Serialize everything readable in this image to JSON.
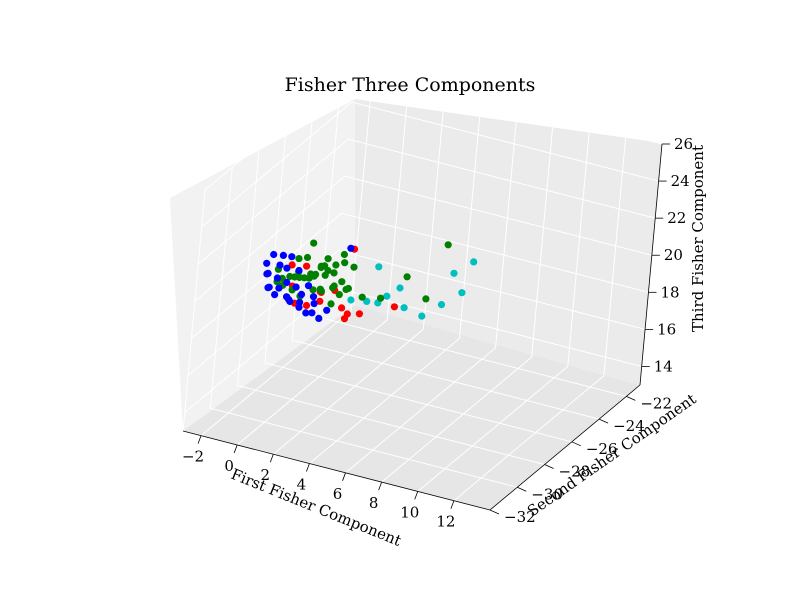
{
  "chart_data": {
    "type": "scatter",
    "title": "Fisher Three Components",
    "xlabel": "First Fisher Component",
    "ylabel": "Second Fisher Component",
    "zlabel": "Third Fisher Component",
    "x_ticks": [
      "−2",
      "0",
      "2",
      "4",
      "6",
      "8",
      "10",
      "12"
    ],
    "y_ticks": [
      "−22",
      "−24",
      "−26",
      "−28",
      "−30",
      "−32"
    ],
    "z_ticks": [
      "14",
      "16",
      "18",
      "20",
      "22",
      "24",
      "26"
    ],
    "xlim": [
      -3,
      14
    ],
    "ylim": [
      -32,
      -21
    ],
    "zlim": [
      13,
      26
    ],
    "colors": {
      "blue": "#0000ff",
      "green": "#008000",
      "red": "#ff0000",
      "cyan": "#00bfbf"
    },
    "series": [
      {
        "color": "cyan",
        "points": [
          [
            10.2,
            -31.0,
            24.2
          ],
          [
            10.8,
            -30.4,
            24.6
          ],
          [
            11.0,
            -31.4,
            23.6
          ],
          [
            9.0,
            -30.0,
            21.6
          ],
          [
            8.4,
            -30.6,
            21.2
          ],
          [
            7.4,
            -30.6,
            21.4
          ],
          [
            6.4,
            -29.6,
            21.6
          ],
          [
            6.0,
            -30.0,
            21.3
          ],
          [
            4.8,
            -29.8,
            20.6
          ],
          [
            3.8,
            -29.6,
            20.3
          ],
          [
            5.0,
            -29.2,
            20.2
          ],
          [
            4.6,
            -28.8,
            21.8
          ]
        ]
      },
      {
        "color": "red",
        "points": [
          [
            3.2,
            -28.8,
            22.4
          ],
          [
            6.6,
            -30.2,
            21.0
          ],
          [
            4.6,
            -30.0,
            20.0
          ],
          [
            3.2,
            -29.4,
            19.6
          ],
          [
            3.4,
            -29.2,
            19.2
          ],
          [
            3.0,
            -28.8,
            18.6
          ],
          [
            2.2,
            -28.6,
            19.8
          ],
          [
            0.6,
            -27.4,
            18.6
          ],
          [
            0.9,
            -27.8,
            18.4
          ],
          [
            -0.4,
            -27.2,
            19.6
          ],
          [
            -1.2,
            -27.0,
            18.2
          ],
          [
            -0.6,
            -27.6,
            17.8
          ],
          [
            0.2,
            -27.8,
            18.0
          ],
          [
            -1.6,
            -26.6,
            19.0
          ],
          [
            1.2,
            -28.2,
            19.2
          ]
        ]
      },
      {
        "color": "green",
        "points": [
          [
            9.2,
            -30.2,
            25.0
          ],
          [
            7.0,
            -30.0,
            22.6
          ],
          [
            8.4,
            -30.4,
            22.0
          ],
          [
            5.4,
            -29.6,
            20.8
          ],
          [
            4.4,
            -29.6,
            20.6
          ],
          [
            3.4,
            -29.0,
            21.6
          ],
          [
            2.6,
            -28.6,
            21.4
          ],
          [
            1.8,
            -28.2,
            20.4
          ],
          [
            2.4,
            -28.4,
            20.2
          ],
          [
            2.8,
            -28.6,
            20.0
          ],
          [
            1.6,
            -28.4,
            20.6
          ],
          [
            1.2,
            -28.0,
            20.0
          ],
          [
            0.8,
            -27.8,
            20.2
          ],
          [
            0.4,
            -27.6,
            19.6
          ],
          [
            0.0,
            -27.4,
            19.4
          ],
          [
            -0.2,
            -27.2,
            19.0
          ],
          [
            -0.6,
            -27.0,
            18.8
          ],
          [
            -1.0,
            -26.8,
            18.6
          ],
          [
            -1.4,
            -26.6,
            18.4
          ],
          [
            -1.8,
            -26.4,
            18.2
          ],
          [
            -0.8,
            -27.2,
            19.2
          ],
          [
            0.6,
            -28.0,
            19.8
          ],
          [
            1.4,
            -28.4,
            20.8
          ],
          [
            2.0,
            -28.4,
            21.0
          ],
          [
            -0.4,
            -26.8,
            20.6
          ],
          [
            -2.2,
            -26.4,
            18.0
          ],
          [
            -2.6,
            -26.2,
            17.6
          ],
          [
            -2.0,
            -26.6,
            17.8
          ],
          [
            -1.2,
            -27.0,
            18.0
          ],
          [
            0.2,
            -27.4,
            18.6
          ],
          [
            1.0,
            -28.0,
            19.2
          ],
          [
            1.8,
            -28.2,
            19.6
          ],
          [
            2.6,
            -28.8,
            19.8
          ],
          [
            3.2,
            -29.0,
            20.4
          ],
          [
            -0.2,
            -27.8,
            18.4
          ],
          [
            -1.6,
            -26.8,
            17.4
          ],
          [
            0.8,
            -27.6,
            18.8
          ],
          [
            1.6,
            -27.8,
            19.4
          ],
          [
            2.2,
            -28.8,
            19.2
          ],
          [
            -0.8,
            -26.6,
            19.6
          ],
          [
            -1.8,
            -25.8,
            18.8
          ],
          [
            -3.0,
            -25.6,
            17.8
          ],
          [
            0.4,
            -27.2,
            19.8
          ],
          [
            1.0,
            -27.6,
            20.6
          ],
          [
            2.0,
            -27.8,
            21.2
          ]
        ]
      },
      {
        "color": "blue",
        "points": [
          [
            3.0,
            -28.8,
            22.4
          ],
          [
            2.0,
            -28.8,
            18.8
          ],
          [
            0.8,
            -28.2,
            18.0
          ],
          [
            -0.2,
            -27.8,
            17.8
          ],
          [
            -1.2,
            -27.2,
            17.6
          ],
          [
            -2.2,
            -26.6,
            17.6
          ],
          [
            -3.0,
            -26.2,
            17.2
          ],
          [
            -3.6,
            -25.6,
            17.4
          ],
          [
            -3.4,
            -25.8,
            17.6
          ],
          [
            -2.6,
            -26.2,
            17.8
          ],
          [
            -1.8,
            -26.6,
            18.0
          ],
          [
            -1.0,
            -27.0,
            18.2
          ],
          [
            -0.4,
            -27.4,
            18.2
          ],
          [
            0.4,
            -27.6,
            18.4
          ],
          [
            -2.8,
            -25.8,
            18.2
          ],
          [
            -3.8,
            -25.4,
            17.8
          ],
          [
            -2.0,
            -26.4,
            18.6
          ],
          [
            -1.4,
            -26.8,
            17.2
          ],
          [
            -0.6,
            -27.2,
            17.6
          ],
          [
            0.2,
            -27.8,
            17.6
          ],
          [
            1.2,
            -28.2,
            17.8
          ],
          [
            -3.2,
            -26.0,
            17.0
          ],
          [
            -2.4,
            -26.6,
            17.2
          ],
          [
            -1.6,
            -26.8,
            17.4
          ],
          [
            -2.8,
            -25.6,
            18.6
          ],
          [
            -1.2,
            -26.6,
            18.8
          ],
          [
            -0.2,
            -27.2,
            18.6
          ],
          [
            0.6,
            -27.8,
            18.2
          ],
          [
            -3.6,
            -25.2,
            18.2
          ],
          [
            -2.2,
            -25.8,
            18.8
          ]
        ]
      }
    ]
  }
}
